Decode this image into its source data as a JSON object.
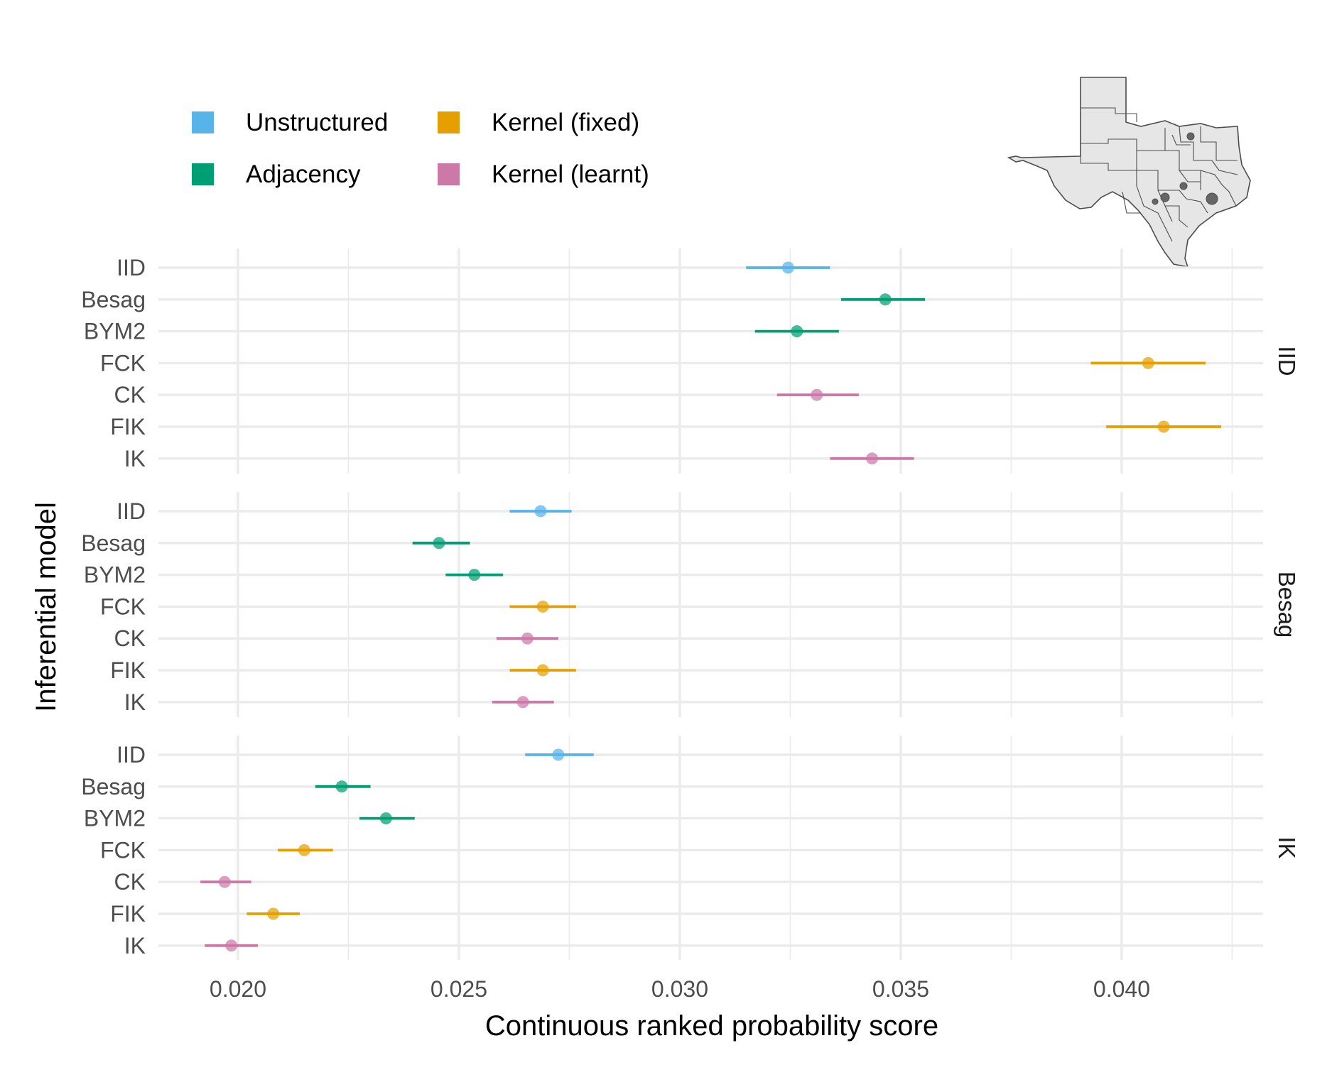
{
  "chart_data": {
    "type": "scatter",
    "subtype": "dot-and-interval",
    "xlabel": "Continuous ranked probability score",
    "ylabel": "Inferential model",
    "xlim": [
      0.0182,
      0.0432
    ],
    "x_ticks": [
      0.02,
      0.025,
      0.03,
      0.035,
      0.04
    ],
    "x_tick_labels": [
      "0.020",
      "0.025",
      "0.030",
      "0.035",
      "0.040"
    ],
    "grid": true,
    "legend_position": "top-left",
    "legend": [
      {
        "label": "Unstructured",
        "color": "#56B4E9"
      },
      {
        "label": "Kernel (fixed)",
        "color": "#E69F00"
      },
      {
        "label": "Adjacency",
        "color": "#009E73"
      },
      {
        "label": "Kernel (learnt)",
        "color": "#CC79A7"
      }
    ],
    "colors": {
      "Unstructured": "#56B4E9",
      "Adjacency": "#009E73",
      "Kernel (fixed)": "#E69F00",
      "Kernel (learnt)": "#CC79A7"
    },
    "models": [
      "IID",
      "Besag",
      "BYM2",
      "FCK",
      "CK",
      "FIK",
      "IK"
    ],
    "model_group": {
      "IID": "Unstructured",
      "Besag": "Adjacency",
      "BYM2": "Adjacency",
      "FCK": "Kernel (fixed)",
      "CK": "Kernel (learnt)",
      "FIK": "Kernel (fixed)",
      "IK": "Kernel (learnt)"
    },
    "inset": {
      "type": "map",
      "region": "Texas",
      "icon": "texas-districts-map"
    },
    "facets": [
      {
        "label": "IID",
        "points": [
          {
            "model": "IID",
            "x": 0.03245,
            "lo": 0.0315,
            "hi": 0.0334
          },
          {
            "model": "Besag",
            "x": 0.03465,
            "lo": 0.03365,
            "hi": 0.03555
          },
          {
            "model": "BYM2",
            "x": 0.03265,
            "lo": 0.0317,
            "hi": 0.0336
          },
          {
            "model": "FCK",
            "x": 0.0406,
            "lo": 0.0393,
            "hi": 0.0419
          },
          {
            "model": "CK",
            "x": 0.0331,
            "lo": 0.0322,
            "hi": 0.03405
          },
          {
            "model": "FIK",
            "x": 0.04095,
            "lo": 0.03965,
            "hi": 0.04225
          },
          {
            "model": "IK",
            "x": 0.03435,
            "lo": 0.0334,
            "hi": 0.0353
          }
        ]
      },
      {
        "label": "Besag",
        "points": [
          {
            "model": "IID",
            "x": 0.02685,
            "lo": 0.02615,
            "hi": 0.02755
          },
          {
            "model": "Besag",
            "x": 0.02455,
            "lo": 0.02395,
            "hi": 0.02525
          },
          {
            "model": "BYM2",
            "x": 0.02535,
            "lo": 0.0247,
            "hi": 0.026
          },
          {
            "model": "FCK",
            "x": 0.0269,
            "lo": 0.02615,
            "hi": 0.02765
          },
          {
            "model": "CK",
            "x": 0.02655,
            "lo": 0.02585,
            "hi": 0.02725
          },
          {
            "model": "FIK",
            "x": 0.0269,
            "lo": 0.02615,
            "hi": 0.02765
          },
          {
            "model": "IK",
            "x": 0.02645,
            "lo": 0.02575,
            "hi": 0.02715
          }
        ]
      },
      {
        "label": "IK",
        "points": [
          {
            "model": "IID",
            "x": 0.02725,
            "lo": 0.0265,
            "hi": 0.02805
          },
          {
            "model": "Besag",
            "x": 0.02235,
            "lo": 0.02175,
            "hi": 0.023
          },
          {
            "model": "BYM2",
            "x": 0.02335,
            "lo": 0.02275,
            "hi": 0.024
          },
          {
            "model": "FCK",
            "x": 0.0215,
            "lo": 0.0209,
            "hi": 0.02215
          },
          {
            "model": "CK",
            "x": 0.0197,
            "lo": 0.01915,
            "hi": 0.0203
          },
          {
            "model": "FIK",
            "x": 0.0208,
            "lo": 0.0202,
            "hi": 0.0214
          },
          {
            "model": "IK",
            "x": 0.01985,
            "lo": 0.01925,
            "hi": 0.02045
          }
        ]
      }
    ]
  }
}
